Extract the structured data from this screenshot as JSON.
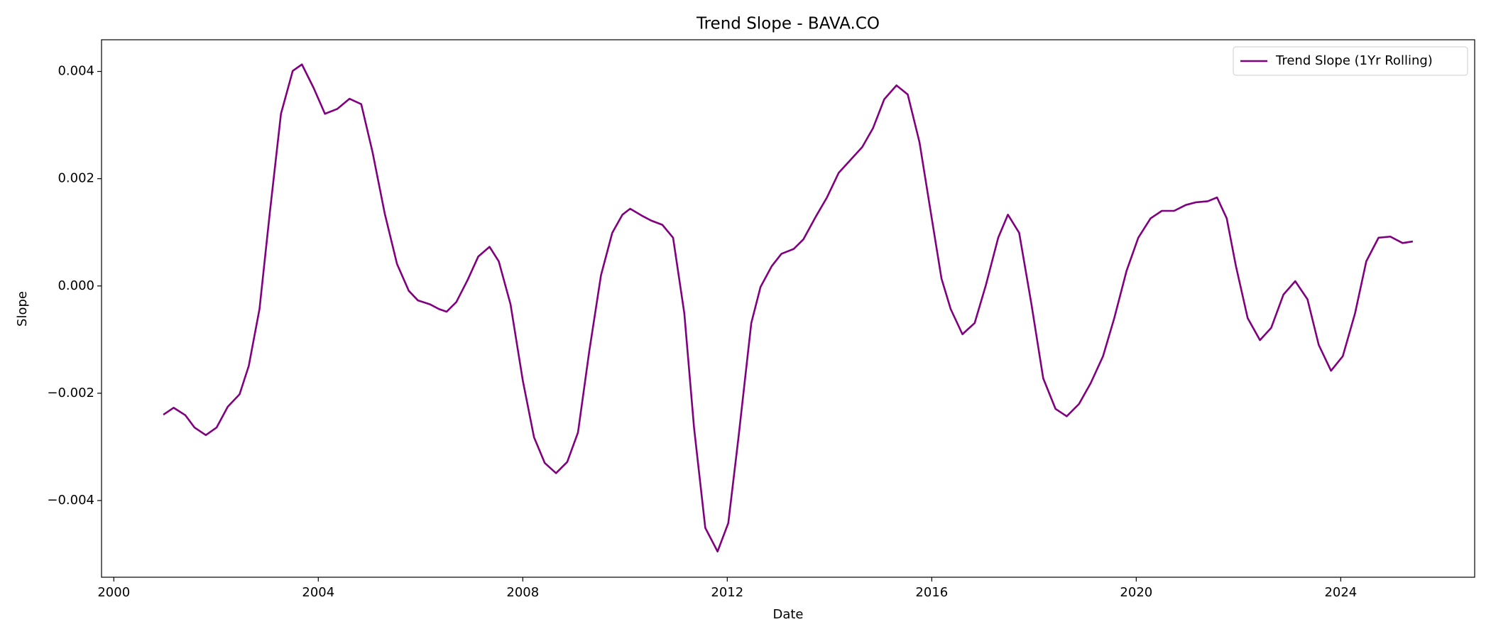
{
  "chart_data": {
    "type": "line",
    "title": "Trend Slope - BAVA.CO",
    "x_label": "Date",
    "y_label": "Slope",
    "x": [
      2000.97,
      2001.17,
      2001.4,
      2001.58,
      2001.8,
      2002.01,
      2002.23,
      2002.46,
      2002.64,
      2002.85,
      2003.05,
      2003.27,
      2003.5,
      2003.68,
      2003.91,
      2004.13,
      2004.37,
      2004.61,
      2004.84,
      2005.06,
      2005.3,
      2005.54,
      2005.77,
      2005.95,
      2006.18,
      2006.36,
      2006.51,
      2006.7,
      2006.92,
      2007.13,
      2007.35,
      2007.53,
      2007.76,
      2008.0,
      2008.22,
      2008.43,
      2008.65,
      2008.87,
      2009.08,
      2009.3,
      2009.53,
      2009.75,
      2009.95,
      2010.1,
      2010.33,
      2010.51,
      2010.73,
      2010.94,
      2011.16,
      2011.35,
      2011.57,
      2011.81,
      2012.02,
      2012.22,
      2012.47,
      2012.65,
      2012.87,
      2013.06,
      2013.3,
      2013.49,
      2013.73,
      2013.95,
      2014.18,
      2014.42,
      2014.64,
      2014.85,
      2015.07,
      2015.31,
      2015.53,
      2015.76,
      2016.0,
      2016.19,
      2016.37,
      2016.6,
      2016.84,
      2017.06,
      2017.3,
      2017.49,
      2017.71,
      2017.95,
      2018.18,
      2018.42,
      2018.64,
      2018.88,
      2019.11,
      2019.35,
      2019.57,
      2019.81,
      2020.04,
      2020.28,
      2020.5,
      2020.74,
      2020.97,
      2021.17,
      2021.4,
      2021.58,
      2021.77,
      2021.95,
      2022.18,
      2022.42,
      2022.64,
      2022.88,
      2023.11,
      2023.35,
      2023.57,
      2023.81,
      2024.04,
      2024.28,
      2024.5,
      2024.74,
      2024.97,
      2025.21,
      2025.41
    ],
    "series": [
      {
        "name": "Trend Slope (1Yr Rolling)",
        "color": "#800080",
        "values": [
          -0.0024,
          -0.00227,
          -0.00241,
          -0.00264,
          -0.00278,
          -0.00264,
          -0.00225,
          -0.00202,
          -0.00149,
          -0.00043,
          0.00135,
          0.00321,
          0.00401,
          0.00413,
          0.00369,
          0.00321,
          0.0033,
          0.00349,
          0.00339,
          0.0025,
          0.00135,
          0.00041,
          -9e-05,
          -0.00027,
          -0.00034,
          -0.00043,
          -0.00048,
          -0.0003,
          0.00011,
          0.00055,
          0.00073,
          0.00046,
          -0.00034,
          -0.00176,
          -0.00282,
          -0.0033,
          -0.00349,
          -0.00328,
          -0.00273,
          -0.00122,
          0.0002,
          0.00099,
          0.00133,
          0.00144,
          0.00131,
          0.00122,
          0.00114,
          0.0009,
          -0.00051,
          -0.00264,
          -0.00451,
          -0.00495,
          -0.00442,
          -0.00282,
          -0.00069,
          -2e-05,
          0.00037,
          0.0006,
          0.00069,
          0.00087,
          0.00129,
          0.00165,
          0.00211,
          0.00236,
          0.00259,
          0.00294,
          0.00348,
          0.00374,
          0.00357,
          0.00268,
          0.00126,
          0.00014,
          -0.00043,
          -0.0009,
          -0.00069,
          2e-05,
          0.0009,
          0.00133,
          0.00099,
          -0.00034,
          -0.00172,
          -0.00229,
          -0.00243,
          -0.0022,
          -0.00181,
          -0.00131,
          -0.0006,
          0.00028,
          0.0009,
          0.00126,
          0.0014,
          0.0014,
          0.00151,
          0.00156,
          0.00158,
          0.00165,
          0.00126,
          0.00037,
          -0.0006,
          -0.00101,
          -0.00078,
          -0.00016,
          9e-05,
          -0.00025,
          -0.0011,
          -0.00158,
          -0.00131,
          -0.00051,
          0.00046,
          0.0009,
          0.00092,
          0.0008,
          0.00083
        ]
      }
    ],
    "xlim": [
      1999.76,
      2026.62
    ],
    "xticks": [
      2000,
      2004,
      2008,
      2012,
      2016,
      2020,
      2024
    ],
    "ylim": [
      -0.00543,
      0.00459
    ],
    "yticks": [
      {
        "value": -0.004,
        "label": "−0.004"
      },
      {
        "value": -0.002,
        "label": "−0.002"
      },
      {
        "value": 0,
        "label": "0.000"
      },
      {
        "value": 0.002,
        "label": "0.002"
      },
      {
        "value": 0.004,
        "label": "0.004"
      }
    ],
    "legend": "upper right"
  }
}
